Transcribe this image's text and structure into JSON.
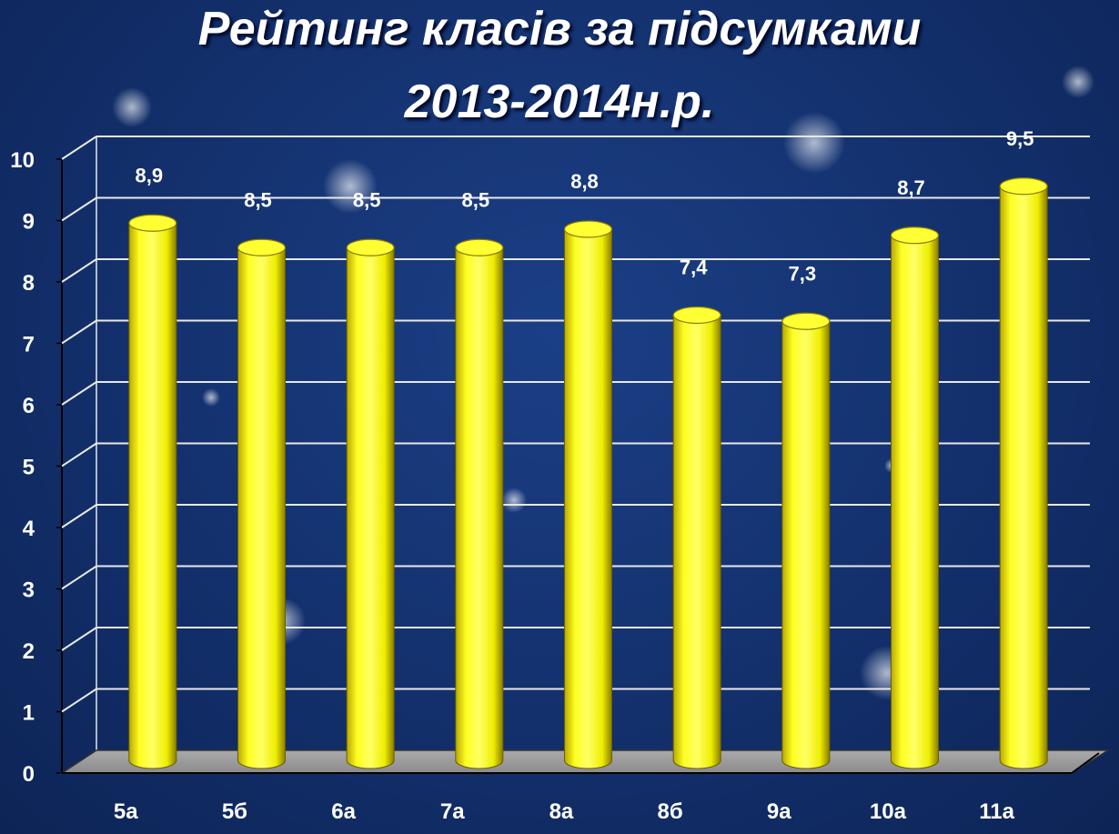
{
  "chart_data": {
    "type": "bar",
    "title_lines": [
      "Рейтинг класів за підсумками",
      "2013-2014н.р."
    ],
    "categories": [
      "5а",
      "5б",
      "6а",
      "7а",
      "8а",
      "8б",
      "9а",
      "10а",
      "11а"
    ],
    "values": [
      8.9,
      8.5,
      8.5,
      8.5,
      8.8,
      7.4,
      7.3,
      8.7,
      9.5
    ],
    "value_labels": [
      "8,9",
      "8,5",
      "8,5",
      "8,5",
      "8,8",
      "7,4",
      "7,3",
      "8,7",
      "9,5"
    ],
    "y_ticks": [
      "0",
      "1",
      "2",
      "3",
      "4",
      "5",
      "6",
      "7",
      "8",
      "9",
      "10"
    ],
    "ylim": [
      0,
      10
    ],
    "grid": true,
    "bar_color": "#ffff00",
    "background_color": "#14326f"
  }
}
